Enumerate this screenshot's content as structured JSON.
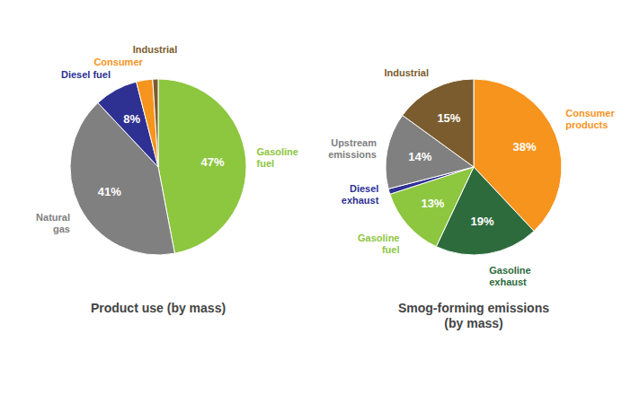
{
  "chart_data": [
    {
      "type": "pie",
      "title": "Product use (by mass)",
      "categories": [
        "Gasoline\nfuel",
        "Natural\ngas",
        "Diesel fuel",
        "Consumer",
        "Industrial"
      ],
      "values": [
        47,
        41,
        8,
        3,
        1
      ],
      "value_labels": [
        "47%",
        "41%",
        "8%",
        null,
        null
      ],
      "colors": [
        "#8dc63f",
        "#808080",
        "#2e3192",
        "#f7941d",
        "#7b5c2e"
      ],
      "data_labels": true
    },
    {
      "type": "pie",
      "title": "Smog-forming emissions\n(by mass)",
      "categories": [
        "Consumer\nproducts",
        "Gasoline\nexhaust",
        "Gasoline\nfuel",
        "Diesel\nexhaust",
        "Upstream\nemissions",
        "Industrial"
      ],
      "values": [
        38,
        19,
        13,
        1,
        14,
        15
      ],
      "value_labels": [
        "38%",
        "19%",
        "13%",
        null,
        "14%",
        "15%"
      ],
      "colors": [
        "#f7941d",
        "#2d6b3c",
        "#8dc63f",
        "#2e3192",
        "#808080",
        "#7b5c2e"
      ],
      "data_labels": true
    }
  ]
}
